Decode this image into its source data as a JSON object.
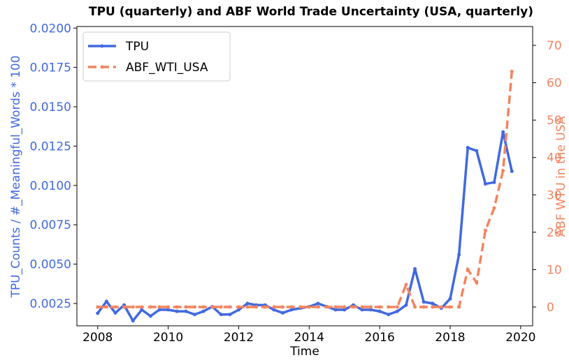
{
  "chart_data": {
    "type": "line",
    "title": "TPU (quarterly) and ABF World Trade Uncertainty (USA, quarterly)",
    "xlabel": "Time",
    "ylabel": "TPU_Counts / #_Meaningful_Words * 100",
    "y2label": "ABF WTU in the USA",
    "x": [
      2008,
      2008.25,
      2008.5,
      2008.75,
      2009,
      2009.25,
      2009.5,
      2009.75,
      2010,
      2010.25,
      2010.5,
      2010.75,
      2011,
      2011.25,
      2011.5,
      2011.75,
      2012,
      2012.25,
      2012.5,
      2012.75,
      2013,
      2013.25,
      2013.5,
      2013.75,
      2014,
      2014.25,
      2014.5,
      2014.75,
      2015,
      2015.25,
      2015.5,
      2015.75,
      2016,
      2016.25,
      2016.5,
      2016.75,
      2017,
      2017.25,
      2017.5,
      2017.75,
      2018,
      2018.25,
      2018.5,
      2018.75,
      2019,
      2019.25,
      2019.5,
      2019.75
    ],
    "series": [
      {
        "name": "TPU",
        "color": "#4169e1",
        "axis": "y",
        "dashed": false,
        "values": [
          0.00188,
          0.00263,
          0.0019,
          0.0024,
          0.0014,
          0.0021,
          0.0017,
          0.0021,
          0.0021,
          0.002,
          0.002,
          0.0018,
          0.002,
          0.0023,
          0.0018,
          0.0018,
          0.0021,
          0.0025,
          0.0024,
          0.0024,
          0.0021,
          0.0019,
          0.0021,
          0.0022,
          0.0023,
          0.0025,
          0.0023,
          0.0021,
          0.0021,
          0.0024,
          0.0021,
          0.0021,
          0.002,
          0.0018,
          0.002,
          0.0024,
          0.0047,
          0.0026,
          0.0025,
          0.0022,
          0.0028,
          0.0056,
          0.0124,
          0.0122,
          0.0101,
          0.0102,
          0.0134,
          0.0109
        ]
      },
      {
        "name": "ABF_WTI_USA",
        "color": "#f4845f",
        "axis": "y2",
        "dashed": true,
        "values": [
          0,
          0,
          0,
          0,
          0,
          0,
          0,
          0,
          0,
          0,
          0,
          0,
          0,
          0,
          0,
          0,
          0,
          0,
          0,
          0,
          0,
          0,
          0,
          0,
          0,
          0,
          0,
          0,
          0,
          0,
          0,
          0,
          0,
          0,
          0,
          6,
          0,
          0,
          0,
          0,
          0,
          0,
          10,
          6.5,
          20.5,
          26.5,
          36.5,
          63
        ]
      }
    ],
    "xlim": [
      2007.41,
      2020.34
    ],
    "xticks": [
      2008,
      2010,
      2012,
      2014,
      2016,
      2018,
      2020
    ],
    "ylim": [
      0.00108,
      0.0201
    ],
    "yticks": [
      {
        "value": 0.0025,
        "label": "0.0025"
      },
      {
        "value": 0.005,
        "label": "0.0050"
      },
      {
        "value": 0.0075,
        "label": "0.0075"
      },
      {
        "value": 0.01,
        "label": "0.0100"
      },
      {
        "value": 0.0125,
        "label": "0.0125"
      },
      {
        "value": 0.015,
        "label": "0.0150"
      },
      {
        "value": 0.0175,
        "label": "0.0175"
      },
      {
        "value": 0.02,
        "label": "0.0200"
      }
    ],
    "y2lim": [
      -5.04,
      75.04
    ],
    "y2ticks": [
      0,
      10,
      20,
      30,
      40,
      50,
      60,
      70
    ],
    "legend": "upper left"
  }
}
